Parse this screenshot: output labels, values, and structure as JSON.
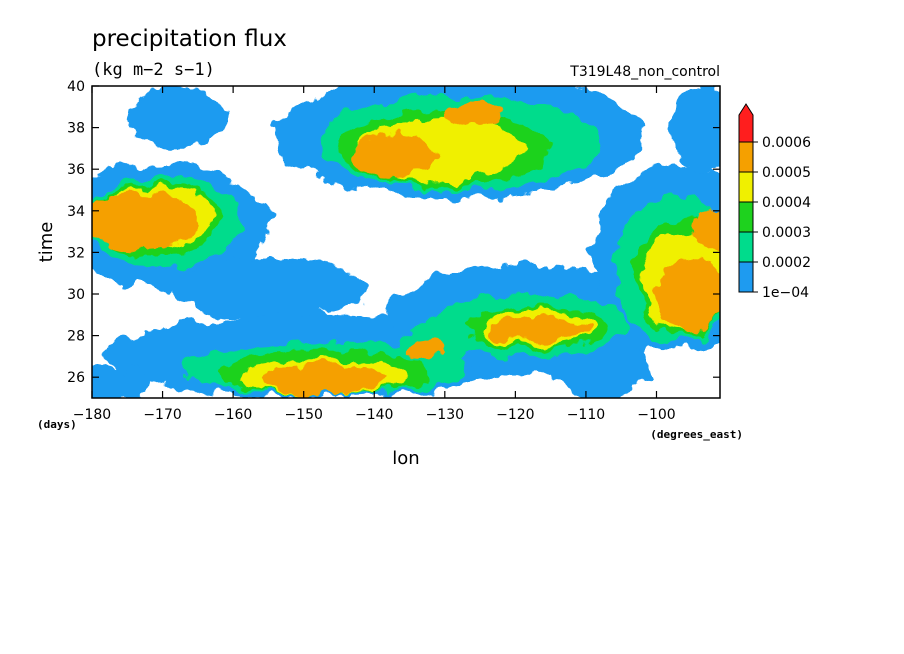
{
  "chart_data": {
    "type": "heatmap",
    "title": "precipitation flux",
    "units": "(kg m−2 s−1)",
    "run_label": "T319L48_non_control",
    "xlabel": "lon",
    "xunits": "(degrees_east)",
    "ylabel": "time",
    "yunits": "(days)",
    "xlim": [
      -180,
      -91
    ],
    "ylim": [
      25,
      40
    ],
    "x_ticks": [
      -180,
      -170,
      -160,
      -150,
      -140,
      -130,
      -120,
      -110,
      -100
    ],
    "x_tick_labels": [
      "−180",
      "−170",
      "−160",
      "−150",
      "−140",
      "−130",
      "−120",
      "−110",
      "−100"
    ],
    "y_ticks": [
      26,
      28,
      30,
      32,
      34,
      36,
      38,
      40
    ],
    "y_tick_labels": [
      "26",
      "28",
      "30",
      "32",
      "34",
      "36",
      "38",
      "40"
    ],
    "colorbar": {
      "levels": [
        0.0001,
        0.0002,
        0.0003,
        0.0004,
        0.0005,
        0.0006
      ],
      "labels": [
        "1e−04",
        "0.0002",
        "0.0003",
        "0.0004",
        "0.0005",
        "0.0006"
      ],
      "colors": [
        "#1e9bf0",
        "#00dc8c",
        "#1ed21e",
        "#f0f000",
        "#f5a000",
        "#ff1e1e"
      ],
      "extend": "max"
    },
    "features": [
      {
        "level": 1,
        "lon": -168,
        "time": 38.5,
        "rlon": 7,
        "rt": 1.5
      },
      {
        "level": 1,
        "lon": -128,
        "time": 37.6,
        "rlon": 26,
        "rt": 3
      },
      {
        "level": 1,
        "lon": -170,
        "time": 33.3,
        "rlon": 15,
        "rt": 3
      },
      {
        "level": 1,
        "lon": -155,
        "time": 30.3,
        "rlon": 14,
        "rt": 1.5
      },
      {
        "level": 1,
        "lon": -148,
        "time": 27.0,
        "rlon": 30,
        "rt": 2
      },
      {
        "level": 1,
        "lon": -118,
        "time": 28.8,
        "rlon": 20,
        "rt": 2.6
      },
      {
        "level": 1,
        "lon": -97,
        "time": 31.8,
        "rlon": 12,
        "rt": 4.5
      },
      {
        "level": 1,
        "lon": -93,
        "time": 38.0,
        "rlon": 5,
        "rt": 2
      },
      {
        "level": 1,
        "lon": -180,
        "time": 25.6,
        "rlon": 8,
        "rt": 1
      },
      {
        "level": 1,
        "lon": -108,
        "time": 26.5,
        "rlon": 7,
        "rt": 1.5
      },
      {
        "level": 2,
        "lon": -128,
        "time": 37.3,
        "rlon": 20,
        "rt": 2.3
      },
      {
        "level": 2,
        "lon": -170,
        "time": 33.5,
        "rlon": 11,
        "rt": 2.2
      },
      {
        "level": 2,
        "lon": -147,
        "time": 26.4,
        "rlon": 20,
        "rt": 1.3
      },
      {
        "level": 2,
        "lon": -118,
        "time": 28.5,
        "rlon": 14,
        "rt": 1.5
      },
      {
        "level": 2,
        "lon": -97,
        "time": 31.2,
        "rlon": 9,
        "rt": 3.5
      },
      {
        "level": 2,
        "lon": -132,
        "time": 27.5,
        "rlon": 5,
        "rt": 1
      },
      {
        "level": 3,
        "lon": -130,
        "time": 37.0,
        "rlon": 15,
        "rt": 1.8
      },
      {
        "level": 3,
        "lon": -171,
        "time": 33.6,
        "rlon": 9,
        "rt": 1.8
      },
      {
        "level": 3,
        "lon": -147,
        "time": 26.2,
        "rlon": 15,
        "rt": 1.1
      },
      {
        "level": 3,
        "lon": -117,
        "time": 28.4,
        "rlon": 10,
        "rt": 1.0
      },
      {
        "level": 3,
        "lon": -96,
        "time": 30.8,
        "rlon": 7,
        "rt": 2.8
      },
      {
        "level": 4,
        "lon": -131,
        "time": 36.9,
        "rlon": 12,
        "rt": 1.5
      },
      {
        "level": 4,
        "lon": -171,
        "time": 33.7,
        "rlon": 8,
        "rt": 1.5
      },
      {
        "level": 4,
        "lon": -147,
        "time": 26.0,
        "rlon": 12,
        "rt": 0.9
      },
      {
        "level": 4,
        "lon": -117,
        "time": 28.4,
        "rlon": 8,
        "rt": 0.8
      },
      {
        "level": 4,
        "lon": -96,
        "time": 30.6,
        "rlon": 6,
        "rt": 2.4
      },
      {
        "level": 5,
        "lon": -137,
        "time": 36.7,
        "rlon": 6,
        "rt": 1.1
      },
      {
        "level": 5,
        "lon": -126,
        "time": 38.7,
        "rlon": 4,
        "rt": 0.7
      },
      {
        "level": 5,
        "lon": -173,
        "time": 33.5,
        "rlon": 8,
        "rt": 1.4
      },
      {
        "level": 5,
        "lon": -147,
        "time": 25.9,
        "rlon": 9,
        "rt": 0.8
      },
      {
        "level": 5,
        "lon": -117,
        "time": 28.3,
        "rlon": 7,
        "rt": 0.5
      },
      {
        "level": 5,
        "lon": -133,
        "time": 27.3,
        "rlon": 3,
        "rt": 0.5
      },
      {
        "level": 5,
        "lon": -95,
        "time": 30.0,
        "rlon": 5,
        "rt": 1.8
      },
      {
        "level": 5,
        "lon": -92,
        "time": 33.2,
        "rlon": 3,
        "rt": 1.0
      }
    ]
  }
}
